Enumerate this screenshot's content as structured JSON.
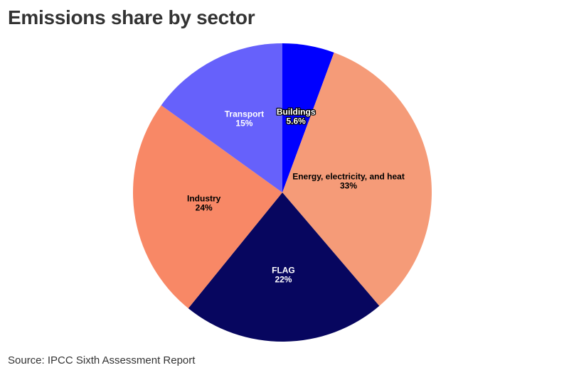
{
  "title": "Emissions share by sector",
  "source": "Source: IPCC Sixth Assessment Report",
  "chart_data": {
    "type": "pie",
    "title": "Emissions share by sector",
    "start_angle_deg": 0,
    "direction": "clockwise",
    "legend": "none",
    "slices": [
      {
        "name": "Buildings",
        "value": 5.6,
        "label": "5.6%",
        "color": "#0000ff",
        "text_color": "#ffffff",
        "label_outline": true
      },
      {
        "name": "Energy, electricity, and heat",
        "value": 33,
        "label": "33%",
        "color": "#f59b78",
        "text_color": "#000000",
        "label_outline": false
      },
      {
        "name": "FLAG",
        "value": 22,
        "label": "22%",
        "color": "#07065f",
        "text_color": "#ffffff",
        "label_outline": false
      },
      {
        "name": "Industry",
        "value": 24,
        "label": "24%",
        "color": "#f88866",
        "text_color": "#000000",
        "label_outline": false
      },
      {
        "name": "Transport",
        "value": 15,
        "label": "15%",
        "color": "#6661fb",
        "text_color": "#ffffff",
        "label_outline": false
      }
    ]
  }
}
